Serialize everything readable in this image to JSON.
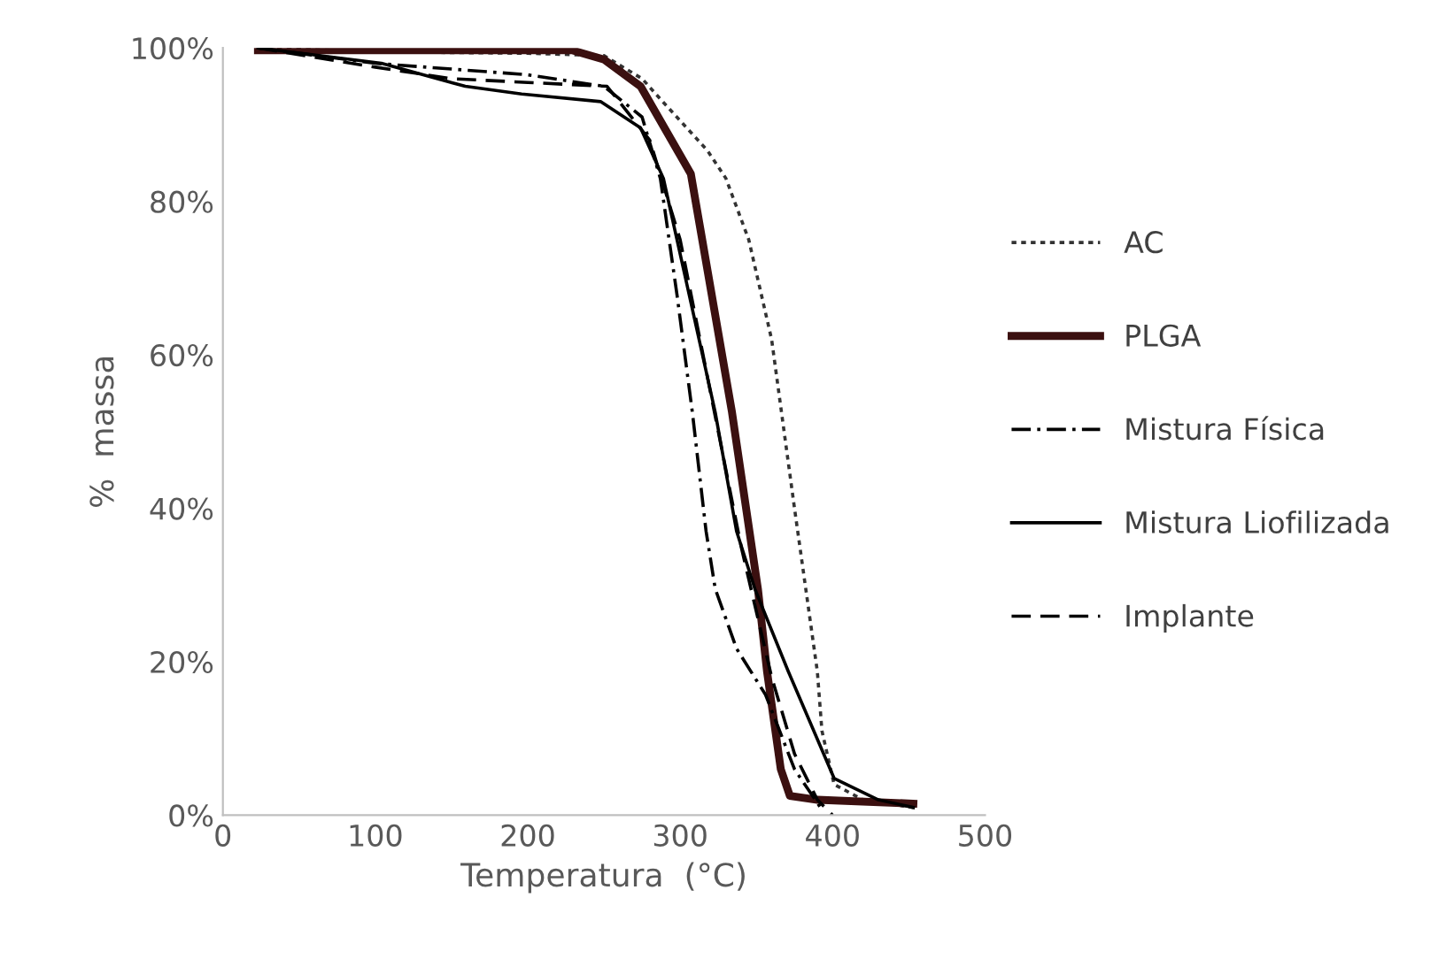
{
  "chart_data": {
    "type": "line",
    "xlabel": "Temperatura  (°C)",
    "ylabel": "%  massa",
    "xlim": [
      0,
      500
    ],
    "xticks": [
      0,
      100,
      200,
      300,
      400,
      500
    ],
    "ylim": [
      0,
      100
    ],
    "yticks": [
      {
        "value": 0,
        "label": "0%"
      },
      {
        "value": 20,
        "label": "20%"
      },
      {
        "value": 40,
        "label": "40%"
      },
      {
        "value": 60,
        "label": "60%"
      },
      {
        "value": 80,
        "label": "80%"
      },
      {
        "value": 100,
        "label": "100%"
      }
    ],
    "grid": false,
    "legend": "right",
    "series": [
      {
        "name": "AC",
        "color": "#333333",
        "line_style": "dotted",
        "x": [
          23,
          100,
          200,
          250,
          275,
          289,
          318,
          330,
          345,
          360,
          375,
          390,
          393,
          401,
          420,
          453
        ],
        "values": [
          100,
          99.5,
          99.3,
          99,
          96,
          92.9,
          86.6,
          83,
          75,
          62,
          40,
          18.7,
          11,
          4,
          2,
          1
        ]
      },
      {
        "name": "PLGA",
        "color": "#3b1010",
        "line_style": "solid",
        "x": [
          23,
          100,
          200,
          229,
          250,
          274,
          307,
          334,
          351,
          357,
          366,
          372,
          390,
          453
        ],
        "values": [
          99.7,
          99.7,
          99.7,
          99.7,
          98.5,
          95,
          83.6,
          52.5,
          29.5,
          18.7,
          6,
          2.5,
          2,
          1.5
        ]
      },
      {
        "name": "Mistura Física",
        "color": "#000000",
        "line_style": "dashdot",
        "x": [
          23,
          100,
          200,
          250,
          275,
          287,
          298,
          308,
          317,
          323,
          337,
          356,
          375,
          393
        ],
        "values": [
          100,
          98,
          96.5,
          95,
          91,
          83,
          67.7,
          52.5,
          37,
          29.5,
          21.7,
          15.7,
          6,
          0.7
        ]
      },
      {
        "name": "Mistura Liofilizada",
        "color": "#000000",
        "line_style": "solid",
        "x": [
          23,
          104,
          159,
          196,
          248,
          274,
          289,
          323,
          337,
          349,
          371,
          401,
          430,
          453
        ],
        "values": [
          100,
          98,
          95,
          94,
          93,
          89.6,
          83,
          52.5,
          37,
          29.5,
          18.7,
          4.8,
          2,
          1
        ]
      },
      {
        "name": "Implante",
        "color": "#000000",
        "line_style": "dashed",
        "x": [
          23,
          100,
          150,
          200,
          252,
          280,
          300,
          320,
          340,
          360,
          375,
          390,
          400
        ],
        "values": [
          100,
          97.5,
          96,
          95.5,
          95,
          88,
          75,
          55,
          35,
          18,
          8,
          2,
          0
        ]
      }
    ]
  }
}
